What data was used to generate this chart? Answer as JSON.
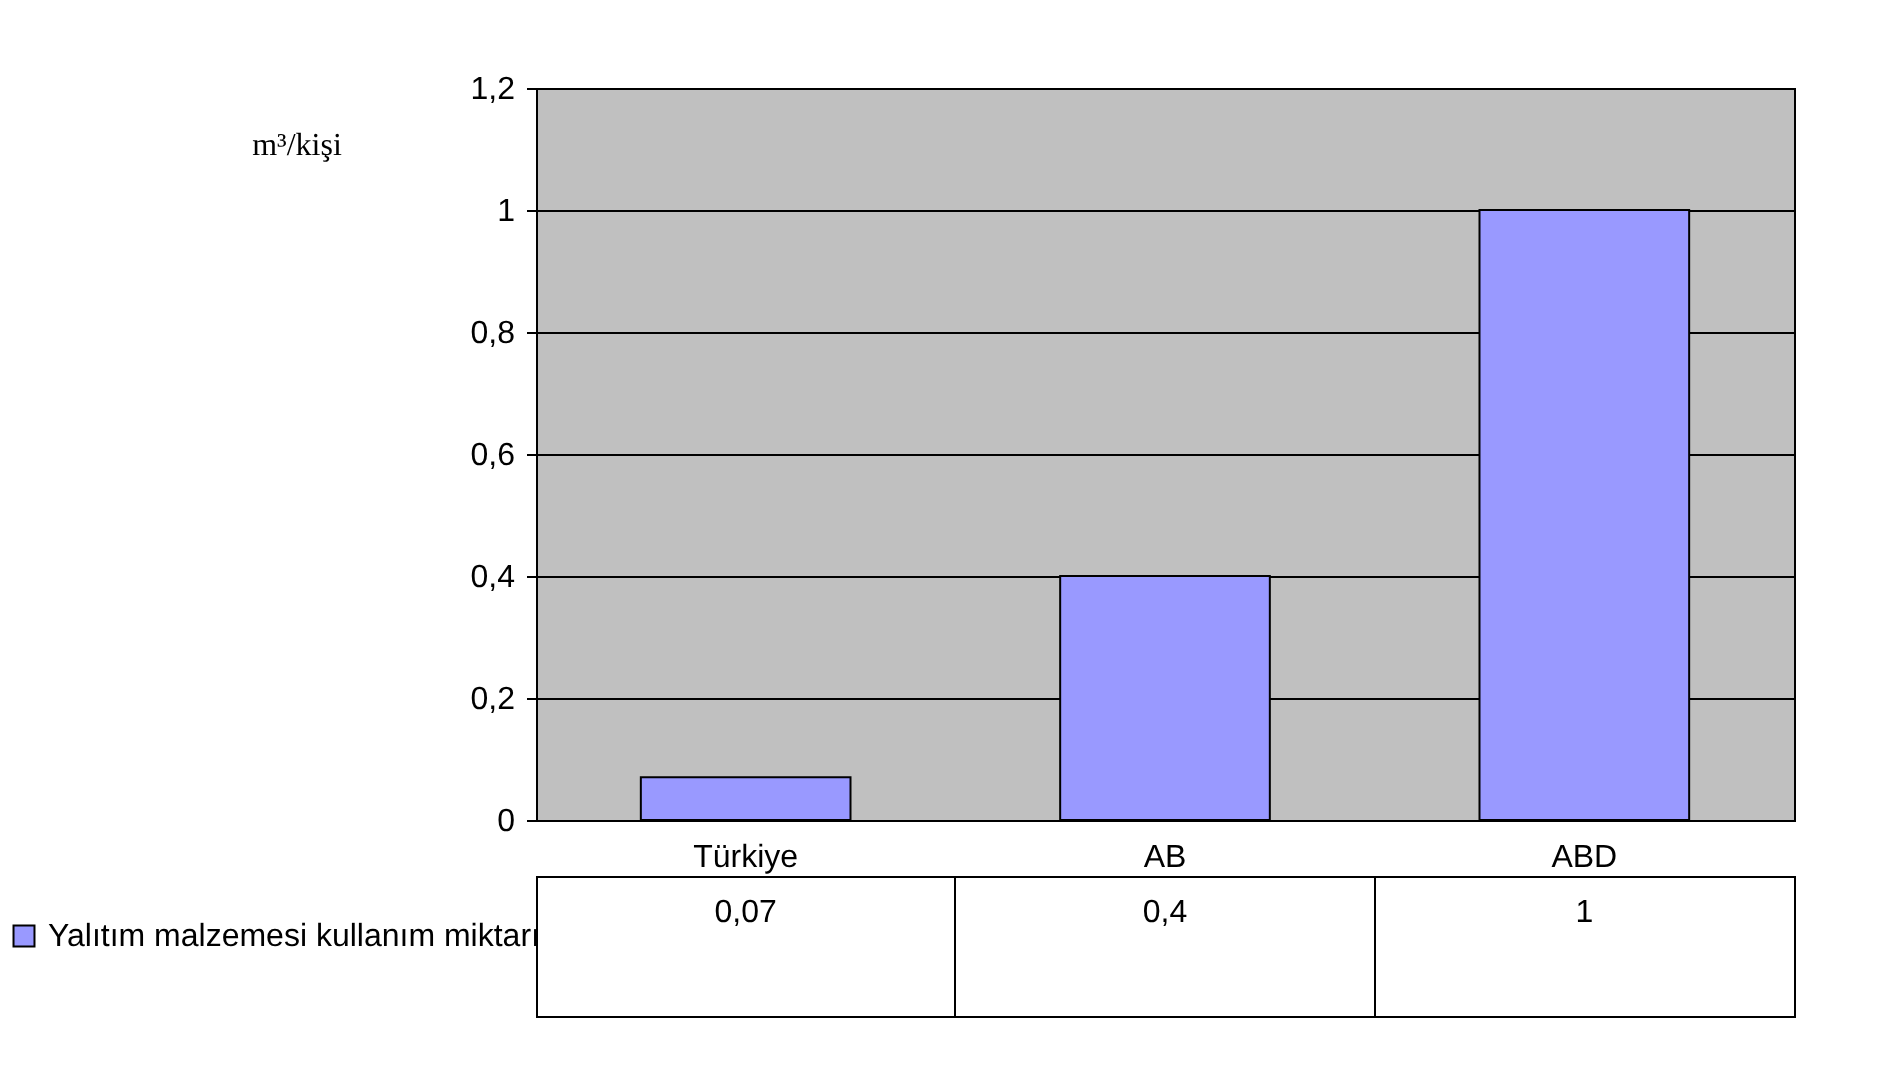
{
  "chart_data": {
    "type": "bar",
    "ylabel": "m³/kişi",
    "categories": [
      "Türkiye",
      "AB",
      "ABD"
    ],
    "series": [
      {
        "name": "Yalıtım malzemesi kullanım miktarı",
        "color": "#9999ff",
        "values": [
          0.07,
          0.4,
          1
        ],
        "value_labels": [
          "0,07",
          "0,4",
          "1"
        ]
      }
    ],
    "ylim": [
      0,
      1.2
    ],
    "yticks": [
      0,
      {
        "value": 0.2,
        "label": "0,2"
      },
      {
        "value": 0.4,
        "label": "0,4"
      },
      {
        "value": 0.6,
        "label": "0,6"
      },
      {
        "value": 0.8,
        "label": "0,8"
      },
      1,
      {
        "value": 1.2,
        "label": "1,2"
      }
    ],
    "grid": "y",
    "legend": "bottom left"
  }
}
